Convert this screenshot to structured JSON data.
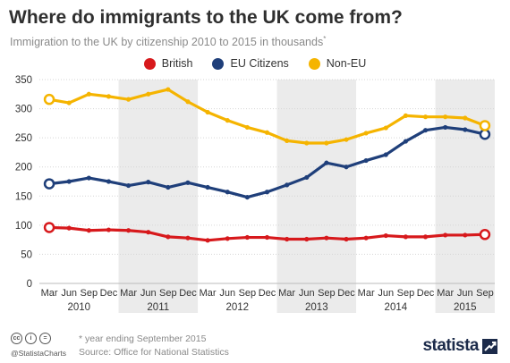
{
  "header": {
    "title": "Where do immigrants to the UK come from?",
    "subtitle": "Immigration to the UK by citizenship 2010 to 2015 in thousands",
    "subtitle_mark": "*"
  },
  "legend": [
    {
      "label": "British",
      "color": "#d7191c"
    },
    {
      "label": "EU Citizens",
      "color": "#1f3f7a"
    },
    {
      "label": "Non-EU",
      "color": "#f5b400"
    }
  ],
  "footer": {
    "note": "* year ending September 2015",
    "source": "Source: Office for National Statistics",
    "handle": "@StatistaCharts",
    "license_icons": [
      "cc",
      "i",
      "="
    ],
    "brand": "statista"
  },
  "chart_data": {
    "type": "line",
    "title": "Where do immigrants to the UK come from?",
    "subtitle": "Immigration to the UK by citizenship 2010 to 2015 in thousands*",
    "x": [
      "Mar",
      "Jun",
      "Sep",
      "Dec",
      "Mar",
      "Jun",
      "Sep",
      "Dec",
      "Mar",
      "Jun",
      "Sep",
      "Dec",
      "Mar",
      "Jun",
      "Sep",
      "Dec",
      "Mar",
      "Jun",
      "Sep",
      "Dec",
      "Mar",
      "Jun",
      "Sep"
    ],
    "years": [
      {
        "label": "2010",
        "start": 0,
        "end": 3
      },
      {
        "label": "2011",
        "start": 4,
        "end": 7
      },
      {
        "label": "2012",
        "start": 8,
        "end": 11
      },
      {
        "label": "2013",
        "start": 12,
        "end": 15
      },
      {
        "label": "2014",
        "start": 16,
        "end": 19
      },
      {
        "label": "2015",
        "start": 20,
        "end": 22
      }
    ],
    "shaded_years": [
      1,
      3,
      5
    ],
    "ylim": [
      0,
      350
    ],
    "yticks": [
      0,
      50,
      100,
      150,
      200,
      250,
      300,
      350
    ],
    "grid": true,
    "legend_position": "top",
    "series": [
      {
        "name": "British",
        "color": "#d7191c",
        "values": [
          96,
          95,
          91,
          92,
          91,
          88,
          80,
          78,
          74,
          77,
          79,
          79,
          76,
          76,
          78,
          76,
          78,
          82,
          80,
          80,
          83,
          83,
          84
        ]
      },
      {
        "name": "EU Citizens",
        "color": "#1f3f7a",
        "values": [
          171,
          175,
          181,
          175,
          168,
          174,
          165,
          173,
          165,
          157,
          148,
          157,
          169,
          182,
          207,
          200,
          211,
          221,
          244,
          263,
          268,
          264,
          256
        ]
      },
      {
        "name": "Non-EU",
        "color": "#f5b400",
        "values": [
          316,
          310,
          325,
          321,
          316,
          325,
          333,
          312,
          294,
          280,
          268,
          259,
          245,
          241,
          241,
          247,
          258,
          267,
          288,
          286,
          286,
          284,
          271
        ]
      }
    ]
  }
}
